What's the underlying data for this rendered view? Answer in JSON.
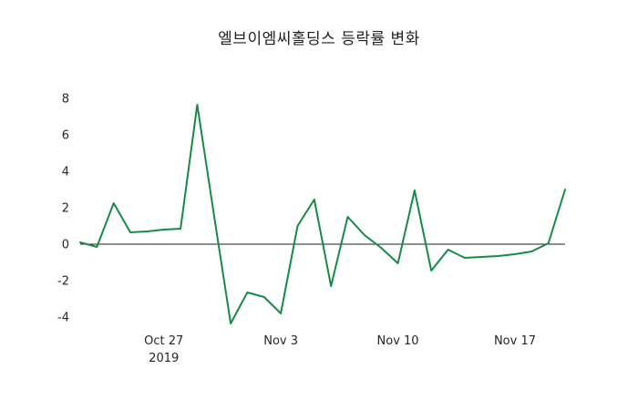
{
  "chart": {
    "line_color": "#178a45",
    "zero_line_color": "#1f1f1f",
    "text_color": "#262626"
  },
  "chart_data": {
    "type": "line",
    "title": "엘브이엠씨홀딩스 등락률 변화",
    "xlabel": "",
    "ylabel": "",
    "series_name": "등락률",
    "x": [
      "2019-10-22",
      "2019-10-23",
      "2019-10-24",
      "2019-10-25",
      "2019-10-26",
      "2019-10-27",
      "2019-10-28",
      "2019-10-29",
      "2019-10-30",
      "2019-10-31",
      "2019-11-01",
      "2019-11-02",
      "2019-11-03",
      "2019-11-04",
      "2019-11-05",
      "2019-11-06",
      "2019-11-07",
      "2019-11-08",
      "2019-11-09",
      "2019-11-10",
      "2019-11-11",
      "2019-11-12",
      "2019-11-13",
      "2019-11-14",
      "2019-11-15",
      "2019-11-16",
      "2019-11-17",
      "2019-11-18",
      "2019-11-19",
      "2019-11-20"
    ],
    "values": [
      0.1,
      -0.15,
      2.25,
      0.65,
      0.7,
      0.8,
      0.85,
      7.65,
      1.6,
      -4.35,
      -2.65,
      -2.9,
      -3.8,
      1.0,
      2.45,
      -2.3,
      1.5,
      0.5,
      -0.2,
      -1.05,
      2.95,
      -1.45,
      -0.3,
      -0.75,
      -0.7,
      -0.65,
      -0.55,
      -0.4,
      0.05,
      3.0
    ],
    "ylim": [
      -5,
      8.6
    ],
    "y_ticks": [
      8,
      6,
      4,
      2,
      0,
      -2,
      -4
    ],
    "x_ticks": [
      {
        "pos": "2019-10-27",
        "label": "Oct 27",
        "sublabel": "2019"
      },
      {
        "pos": "2019-11-03",
        "label": "Nov 3",
        "sublabel": ""
      },
      {
        "pos": "2019-11-10",
        "label": "Nov 10",
        "sublabel": ""
      },
      {
        "pos": "2019-11-17",
        "label": "Nov 17",
        "sublabel": ""
      }
    ],
    "grid": false,
    "legend": false,
    "zero_line": true
  }
}
